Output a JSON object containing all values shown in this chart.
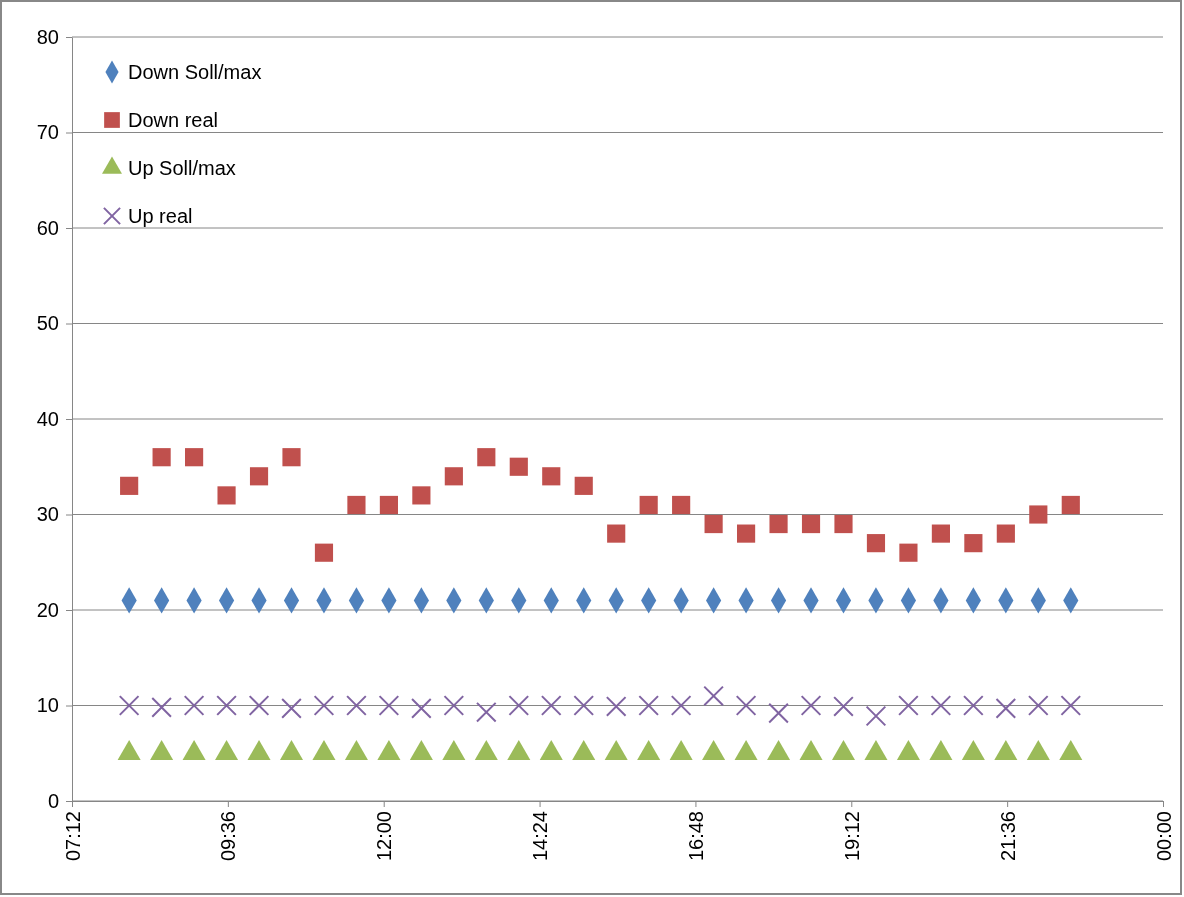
{
  "chart_data": {
    "type": "scatter",
    "x": [
      8.08,
      8.58,
      9.08,
      9.58,
      10.08,
      10.58,
      11.08,
      11.58,
      12.08,
      12.58,
      13.08,
      13.58,
      14.08,
      14.58,
      15.08,
      15.58,
      16.08,
      16.58,
      17.08,
      17.58,
      18.08,
      18.58,
      19.08,
      19.58,
      20.08,
      20.58,
      21.08,
      21.58,
      22.08,
      22.58
    ],
    "series": [
      {
        "name": "Down Soll/max",
        "color": "#4f81bd",
        "marker": "diamond",
        "values": [
          21,
          21,
          21,
          21,
          21,
          21,
          21,
          21,
          21,
          21,
          21,
          21,
          21,
          21,
          21,
          21,
          21,
          21,
          21,
          21,
          21,
          21,
          21,
          21,
          21,
          21,
          21,
          21,
          21,
          21
        ]
      },
      {
        "name": "Down real",
        "color": "#c0504d",
        "marker": "square",
        "values": [
          33,
          36,
          36,
          32,
          34,
          36,
          26,
          31,
          31,
          32,
          34,
          36,
          35,
          34,
          33,
          28,
          31,
          31,
          29,
          28,
          29,
          29,
          29,
          27,
          26,
          28,
          27,
          28,
          30,
          31
        ]
      },
      {
        "name": "Up Soll/max",
        "color": "#9bbb59",
        "marker": "triangle",
        "values": [
          5,
          5,
          5,
          5,
          5,
          5,
          5,
          5,
          5,
          5,
          5,
          5,
          5,
          5,
          5,
          5,
          5,
          5,
          5,
          5,
          5,
          5,
          5,
          5,
          5,
          5,
          5,
          5,
          5,
          5
        ]
      },
      {
        "name": "Up real",
        "color": "#8064a2",
        "marker": "cross",
        "values": [
          10,
          9.8,
          10,
          10,
          10,
          9.7,
          10,
          10,
          10,
          9.7,
          10,
          9.3,
          10,
          10,
          10,
          9.9,
          10,
          10,
          11,
          10,
          9.2,
          10,
          9.9,
          8.9,
          10,
          10,
          10,
          9.7,
          10,
          10
        ]
      }
    ],
    "xlim": [
      7.2,
      24
    ],
    "xticks": [
      {
        "value": 7.2,
        "label": "07:12"
      },
      {
        "value": 9.6,
        "label": "09:36"
      },
      {
        "value": 12,
        "label": "12:00"
      },
      {
        "value": 14.4,
        "label": "14:24"
      },
      {
        "value": 16.8,
        "label": "16:48"
      },
      {
        "value": 19.2,
        "label": "19:12"
      },
      {
        "value": 21.6,
        "label": "21:36"
      },
      {
        "value": 24,
        "label": "00:00"
      }
    ],
    "ylim": [
      0,
      80
    ],
    "yticks": [
      0,
      10,
      20,
      30,
      40,
      50,
      60,
      70,
      80
    ],
    "grid": "y",
    "legend": "top left"
  }
}
